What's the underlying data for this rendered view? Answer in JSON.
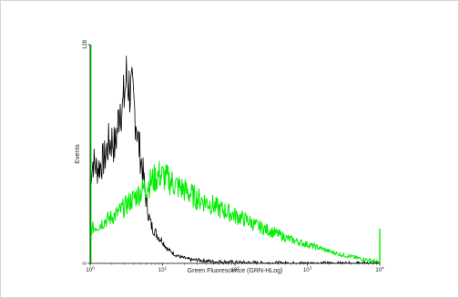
{
  "chart_data": {
    "type": "line",
    "title": "",
    "xlabel": "Green Fluorescence (GRN-HLog)",
    "ylabel": "Events",
    "xscale": "log",
    "xlim": [
      1,
      10000
    ],
    "ylim": [
      0,
      128
    ],
    "x_ticks": [
      {
        "value": 1,
        "base": "10",
        "exp": "0"
      },
      {
        "value": 10,
        "base": "10",
        "exp": "1"
      },
      {
        "value": 100,
        "base": "10",
        "exp": "2"
      },
      {
        "value": 1000,
        "base": "10",
        "exp": "3"
      },
      {
        "value": 10000,
        "base": "10",
        "exp": "4"
      }
    ],
    "y_ticks": [
      {
        "value": 0,
        "label": "0"
      },
      {
        "value": 128,
        "label": "128"
      }
    ],
    "grid": false,
    "legend": "none",
    "series": [
      {
        "color": "#000000",
        "x": [
          1,
          1.1,
          1.25,
          1.4,
          1.6,
          1.8,
          2.0,
          2.2,
          2.4,
          2.6,
          2.8,
          3.0,
          3.2,
          3.4,
          3.6,
          3.8,
          4.0,
          4.3,
          4.6,
          5.0,
          5.4,
          5.8,
          6.2,
          6.6,
          7.0,
          7.5,
          8.0,
          9.0,
          10,
          11,
          12,
          13,
          15,
          17,
          20,
          25,
          30,
          40,
          50,
          70,
          100,
          150,
          200,
          300,
          500,
          1000,
          2000,
          5000,
          10000
        ],
        "y": [
          50,
          60,
          55,
          58,
          62,
          70,
          72,
          68,
          80,
          95,
          90,
          100,
          110,
          105,
          100,
          98,
          92,
          85,
          72,
          62,
          52,
          40,
          32,
          26,
          22,
          20,
          18,
          15,
          13,
          10,
          8,
          7,
          5,
          4,
          3,
          2,
          2,
          1.5,
          1,
          1,
          0.6,
          0.4,
          0.3,
          0.2,
          0.1,
          0,
          0,
          0,
          0
        ]
      },
      {
        "color": "#00ee00",
        "x": [
          1,
          1.3,
          1.6,
          2.0,
          2.5,
          3.0,
          3.5,
          4.0,
          5.0,
          6.0,
          7.0,
          8.0,
          9.0,
          10,
          12,
          14,
          16,
          18,
          20,
          25,
          30,
          40,
          50,
          60,
          80,
          100,
          150,
          200,
          300,
          400,
          500,
          700,
          1000,
          1500,
          2000,
          3000,
          4000,
          5000,
          7000,
          9000,
          10000
        ],
        "y": [
          20,
          22,
          25,
          27,
          30,
          33,
          36,
          38,
          42,
          45,
          48,
          50,
          52,
          51,
          49,
          47,
          45,
          44,
          43,
          40,
          38,
          36,
          34,
          32,
          30,
          28,
          25,
          22,
          19,
          17,
          15,
          13,
          11,
          9,
          7,
          5,
          4,
          3,
          2,
          1,
          0
        ]
      }
    ]
  }
}
